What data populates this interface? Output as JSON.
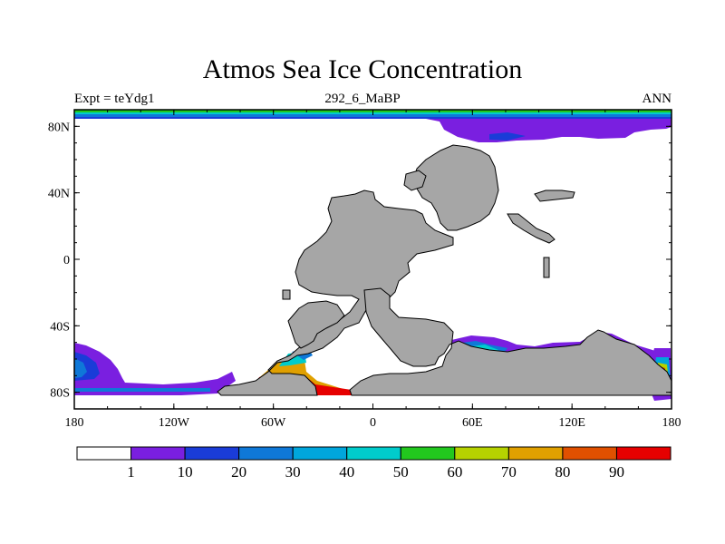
{
  "title": "Atmos Sea Ice Concentration",
  "left_label": "Expt = teYdg1",
  "center_label": "292_6_MaBP",
  "right_label": "ANN",
  "map": {
    "projection": "cylindrical-equidistant",
    "lon_range": [
      -180,
      180
    ],
    "lat_range": [
      -90,
      90
    ],
    "land_color": "#a6a6a6",
    "ocean_color": "#ffffff",
    "y_ticks": [
      {
        "label": "80N",
        "lat": 80
      },
      {
        "label": "40N",
        "lat": 40
      },
      {
        "label": "0",
        "lat": 0
      },
      {
        "label": "40S",
        "lat": -40
      },
      {
        "label": "80S",
        "lat": -80
      }
    ],
    "x_ticks": [
      {
        "label": "180",
        "lon": -180
      },
      {
        "label": "120W",
        "lon": -120
      },
      {
        "label": "60W",
        "lon": -60
      },
      {
        "label": "0",
        "lon": 0
      },
      {
        "label": "60E",
        "lon": 60
      },
      {
        "label": "120E",
        "lon": 120
      },
      {
        "label": "180",
        "lon": 180
      }
    ]
  },
  "colorbar": {
    "colors": [
      "#ffffff",
      "#7a1fe0",
      "#1a3cd8",
      "#0f78d8",
      "#00a6dc",
      "#00cccc",
      "#22c81e",
      "#b6d200",
      "#e0a000",
      "#e05000",
      "#e60000"
    ],
    "labels": [
      "1",
      "10",
      "20",
      "30",
      "40",
      "50",
      "60",
      "70",
      "80",
      "90"
    ]
  }
}
